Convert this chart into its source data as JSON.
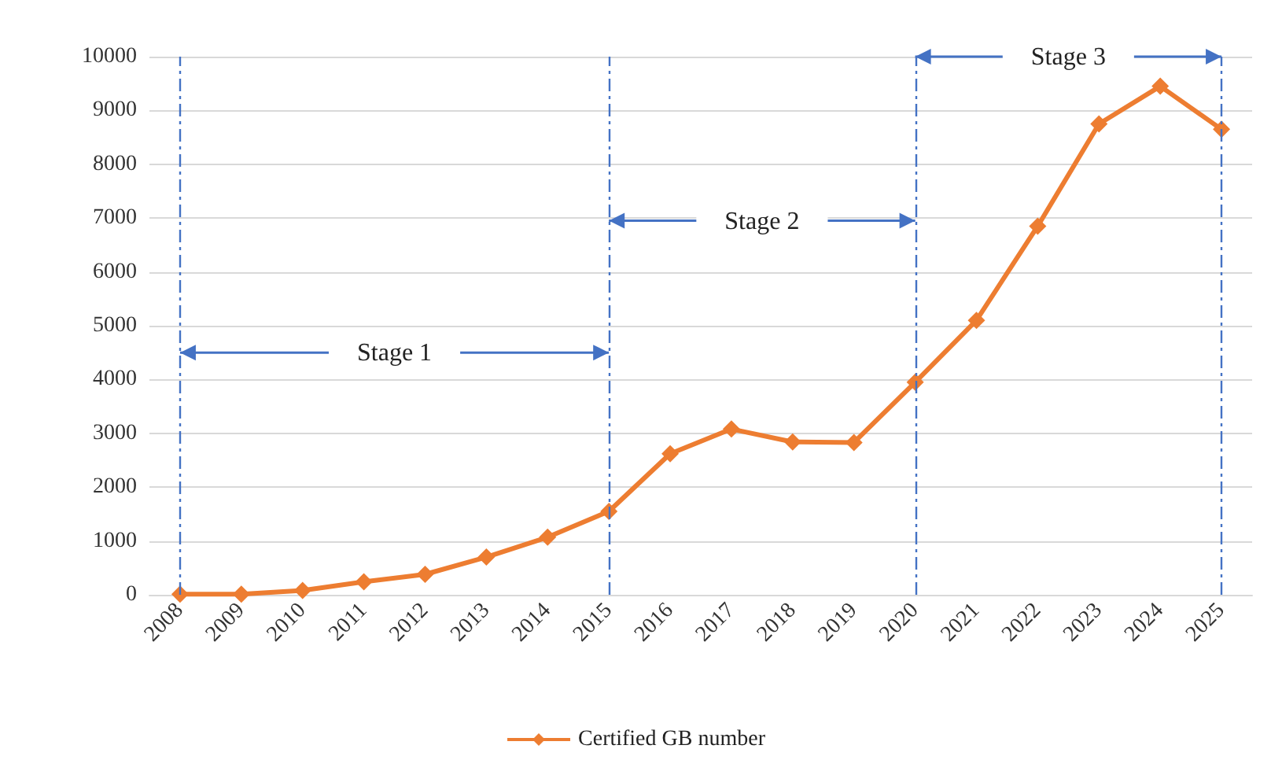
{
  "chart_data": {
    "type": "line",
    "categories": [
      "2008",
      "2009",
      "2010",
      "2011",
      "2012",
      "2013",
      "2014",
      "2015",
      "2016",
      "2017",
      "2018",
      "2019",
      "2020",
      "2021",
      "2022",
      "2023",
      "2024",
      "2025"
    ],
    "series": [
      {
        "name": "Certified GB number",
        "color": "#ed7d31",
        "values": [
          10,
          10,
          80,
          240,
          380,
          700,
          1070,
          1550,
          2620,
          3080,
          2840,
          2830,
          3950,
          5100,
          6850,
          8750,
          9450,
          8650
        ]
      }
    ],
    "ylim": [
      0,
      10000
    ],
    "yticks": [
      0,
      1000,
      2000,
      3000,
      4000,
      5000,
      6000,
      7000,
      8000,
      9000,
      10000
    ],
    "ref_lines": [
      {
        "axis": "x",
        "value": "2008",
        "color": "#4472c4",
        "line_style": "dashed"
      },
      {
        "axis": "x",
        "value": "2015",
        "color": "#4472c4",
        "line_style": "dashed"
      },
      {
        "axis": "x",
        "value": "2020",
        "color": "#4472c4",
        "line_style": "dashed"
      },
      {
        "axis": "x",
        "value": "2025",
        "color": "#4472c4",
        "line_style": "dashed"
      }
    ],
    "annotations": [
      {
        "text": "Stage 1",
        "x": "2015",
        "y": 4500
      },
      {
        "text": "Stage 2",
        "x": "2020",
        "y": 6950
      },
      {
        "text": "Stage 3",
        "x": "2025",
        "y": 10000
      }
    ],
    "grid": "y",
    "legend": "bottom",
    "marker": "diamond",
    "line_style": "solid"
  }
}
